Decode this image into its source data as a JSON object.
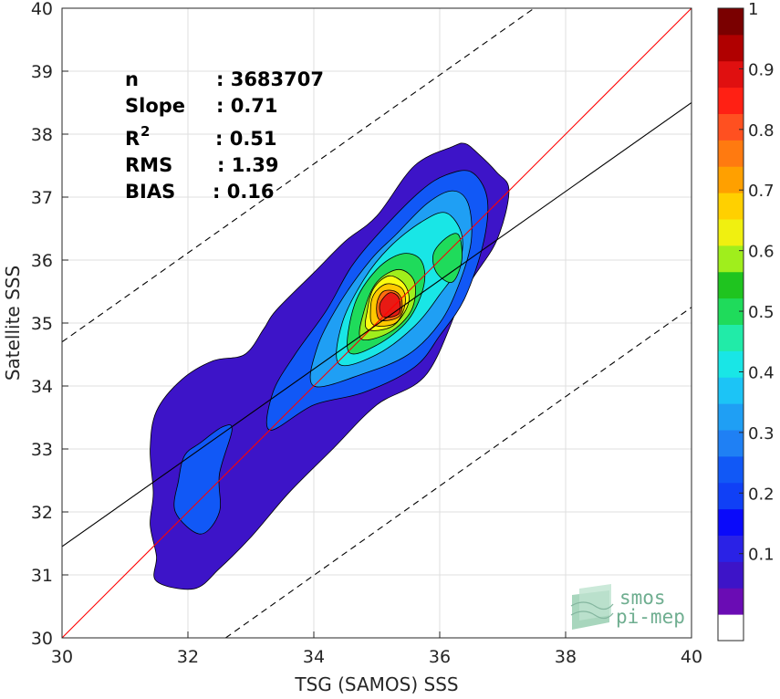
{
  "chart_data": {
    "type": "heatmap",
    "subtype": "filled-contour density scatter",
    "xlabel": "TSG (SAMOS) SSS",
    "ylabel": "Satellite SSS",
    "xlim": [
      30,
      40
    ],
    "ylim": [
      30,
      40
    ],
    "xticks": [
      "30",
      "32",
      "34",
      "36",
      "38",
      "40"
    ],
    "yticks": [
      "30",
      "31",
      "32",
      "33",
      "34",
      "35",
      "36",
      "37",
      "38",
      "39",
      "40"
    ],
    "grid": true,
    "stats": [
      {
        "key": "n",
        "value": ": 3683707"
      },
      {
        "key": "Slope",
        "value": ": 0.71"
      },
      {
        "key": "R",
        "sup": "2",
        "value": ": 0.51"
      },
      {
        "key": "RMS",
        "value": ": 1.39"
      },
      {
        "key": "BIAS",
        "value": ": 0.16"
      }
    ],
    "lines": [
      {
        "role": "1:1 line",
        "color": "#ff0000",
        "style": "solid",
        "points": [
          [
            30,
            30
          ],
          [
            40,
            40
          ]
        ]
      },
      {
        "role": "regression fit",
        "color": "#000000",
        "style": "solid",
        "points": [
          [
            30,
            31.45
          ],
          [
            40,
            38.5
          ]
        ]
      },
      {
        "role": "upper bound",
        "color": "#000000",
        "style": "dashed",
        "points": [
          [
            30,
            34.7
          ],
          [
            37.5,
            40
          ]
        ]
      },
      {
        "role": "lower bound",
        "color": "#000000",
        "style": "dashed",
        "points": [
          [
            32.6,
            30
          ],
          [
            40,
            35.25
          ]
        ]
      }
    ],
    "contour_levels": [
      {
        "level": 0.05,
        "color": "#3d14c8",
        "points": [
          [
            31.5,
            30.9
          ],
          [
            32.1,
            30.78
          ],
          [
            32.5,
            31.1
          ],
          [
            33.0,
            31.6
          ],
          [
            33.6,
            32.3
          ],
          [
            34.3,
            33.0
          ],
          [
            35.0,
            33.7
          ],
          [
            35.8,
            34.2
          ],
          [
            36.4,
            35.5
          ],
          [
            36.9,
            36.3
          ],
          [
            37.1,
            37.1
          ],
          [
            36.9,
            37.4
          ],
          [
            36.6,
            37.7
          ],
          [
            36.4,
            37.85
          ],
          [
            36.2,
            37.8
          ],
          [
            35.6,
            37.5
          ],
          [
            35.0,
            36.7
          ],
          [
            34.5,
            36.3
          ],
          [
            34.0,
            35.8
          ],
          [
            33.4,
            35.2
          ],
          [
            33.2,
            34.9
          ],
          [
            32.9,
            34.5
          ],
          [
            32.4,
            34.4
          ],
          [
            31.9,
            34.1
          ],
          [
            31.5,
            33.6
          ],
          [
            31.4,
            33.0
          ],
          [
            31.45,
            32.3
          ],
          [
            31.4,
            31.8
          ],
          [
            31.5,
            31.3
          ]
        ]
      },
      {
        "level": 0.15,
        "color": "#1158f6",
        "points": [
          [
            31.8,
            32.0
          ],
          [
            32.2,
            31.65
          ],
          [
            32.5,
            32.0
          ],
          [
            32.5,
            32.6
          ],
          [
            32.7,
            33.3
          ],
          [
            32.55,
            33.35
          ],
          [
            32.2,
            33.1
          ],
          [
            31.95,
            32.9
          ],
          [
            31.85,
            32.5
          ]
        ]
      },
      {
        "level": 0.15,
        "color": "#1158f6",
        "points": [
          [
            33.3,
            33.3
          ],
          [
            34.0,
            33.7
          ],
          [
            34.8,
            33.9
          ],
          [
            35.6,
            34.3
          ],
          [
            36.0,
            34.8
          ],
          [
            36.4,
            35.4
          ],
          [
            36.7,
            36.3
          ],
          [
            36.75,
            37.0
          ],
          [
            36.5,
            37.4
          ],
          [
            36.1,
            37.35
          ],
          [
            35.7,
            37.1
          ],
          [
            35.1,
            36.5
          ],
          [
            34.6,
            35.9
          ],
          [
            34.2,
            35.2
          ],
          [
            33.7,
            34.5
          ],
          [
            33.35,
            33.9
          ]
        ]
      },
      {
        "level": 0.25,
        "color": "#1f9ff4",
        "points": [
          [
            34.0,
            34.0
          ],
          [
            34.8,
            34.2
          ],
          [
            35.5,
            34.5
          ],
          [
            36.0,
            35.0
          ],
          [
            36.3,
            35.6
          ],
          [
            36.5,
            36.3
          ],
          [
            36.45,
            36.9
          ],
          [
            36.2,
            37.1
          ],
          [
            35.8,
            36.9
          ],
          [
            35.3,
            36.4
          ],
          [
            34.9,
            36.0
          ],
          [
            34.4,
            35.3
          ],
          [
            34.05,
            34.6
          ]
        ]
      },
      {
        "level": 0.35,
        "color": "#19e6e6",
        "points": [
          [
            34.4,
            34.35
          ],
          [
            35.0,
            34.5
          ],
          [
            35.6,
            34.95
          ],
          [
            36.0,
            35.45
          ],
          [
            36.3,
            35.9
          ],
          [
            36.35,
            36.4
          ],
          [
            36.1,
            36.75
          ],
          [
            35.7,
            36.6
          ],
          [
            35.2,
            36.2
          ],
          [
            34.8,
            35.7
          ],
          [
            34.45,
            35.0
          ]
        ]
      },
      {
        "level": 0.45,
        "color": "#1fdb5b",
        "points": [
          [
            34.55,
            34.55
          ],
          [
            35.0,
            34.65
          ],
          [
            35.5,
            35.05
          ],
          [
            35.75,
            35.6
          ],
          [
            35.7,
            36.0
          ],
          [
            35.4,
            36.1
          ],
          [
            35.0,
            35.85
          ],
          [
            34.65,
            35.3
          ]
        ]
      },
      {
        "level": 0.45,
        "color": "#1fdb5b",
        "points": [
          [
            35.95,
            35.8
          ],
          [
            36.2,
            35.65
          ],
          [
            36.35,
            36.0
          ],
          [
            36.3,
            36.4
          ],
          [
            36.1,
            36.35
          ],
          [
            35.9,
            36.1
          ]
        ]
      },
      {
        "level": 0.55,
        "color": "#a0ee1c",
        "points": [
          [
            34.75,
            34.75
          ],
          [
            35.2,
            34.85
          ],
          [
            35.55,
            35.2
          ],
          [
            35.6,
            35.65
          ],
          [
            35.35,
            35.85
          ],
          [
            35.0,
            35.65
          ],
          [
            34.8,
            35.2
          ]
        ]
      },
      {
        "level": 0.6,
        "color": "#fbfb10",
        "points": [
          [
            34.85,
            34.9
          ],
          [
            35.25,
            34.95
          ],
          [
            35.5,
            35.3
          ],
          [
            35.45,
            35.6
          ],
          [
            35.2,
            35.75
          ],
          [
            34.95,
            35.55
          ],
          [
            34.85,
            35.2
          ]
        ]
      },
      {
        "level": 0.65,
        "color": "#ffc800",
        "points": [
          [
            34.95,
            34.97
          ],
          [
            35.3,
            35.0
          ],
          [
            35.45,
            35.3
          ],
          [
            35.4,
            35.55
          ],
          [
            35.15,
            35.62
          ],
          [
            34.95,
            35.45
          ],
          [
            34.9,
            35.2
          ]
        ]
      },
      {
        "level": 0.75,
        "color": "#ff6d10",
        "points": [
          [
            35.05,
            35.05
          ],
          [
            35.35,
            35.1
          ],
          [
            35.4,
            35.35
          ],
          [
            35.3,
            35.5
          ],
          [
            35.1,
            35.5
          ],
          [
            35.0,
            35.3
          ]
        ]
      },
      {
        "level": 0.85,
        "color": "#e81a14",
        "points": [
          [
            35.1,
            35.1
          ],
          [
            35.35,
            35.15
          ],
          [
            35.35,
            35.4
          ],
          [
            35.2,
            35.48
          ],
          [
            35.05,
            35.3
          ]
        ]
      }
    ],
    "colorbar": {
      "range": [
        0,
        1
      ],
      "ticks": [
        "0.1",
        "0.2",
        "0.3",
        "0.4",
        "0.5",
        "0.6",
        "0.7",
        "0.8",
        "0.9",
        "1"
      ],
      "colors": [
        "#ffffff",
        "#6a0cb4",
        "#3d14c8",
        "#2a22e6",
        "#0a0afa",
        "#1040f6",
        "#1158f6",
        "#1f80f4",
        "#1f9ff4",
        "#1cc4f6",
        "#19e6e6",
        "#21eba8",
        "#1fdb5b",
        "#1fc41f",
        "#a0ee1c",
        "#f0f010",
        "#ffd000",
        "#ffa000",
        "#ff7a10",
        "#ff5020",
        "#ff2014",
        "#e01010",
        "#b00000",
        "#7a0000"
      ]
    }
  },
  "logo": {
    "line1": "smos",
    "line2": "pi-mep"
  }
}
